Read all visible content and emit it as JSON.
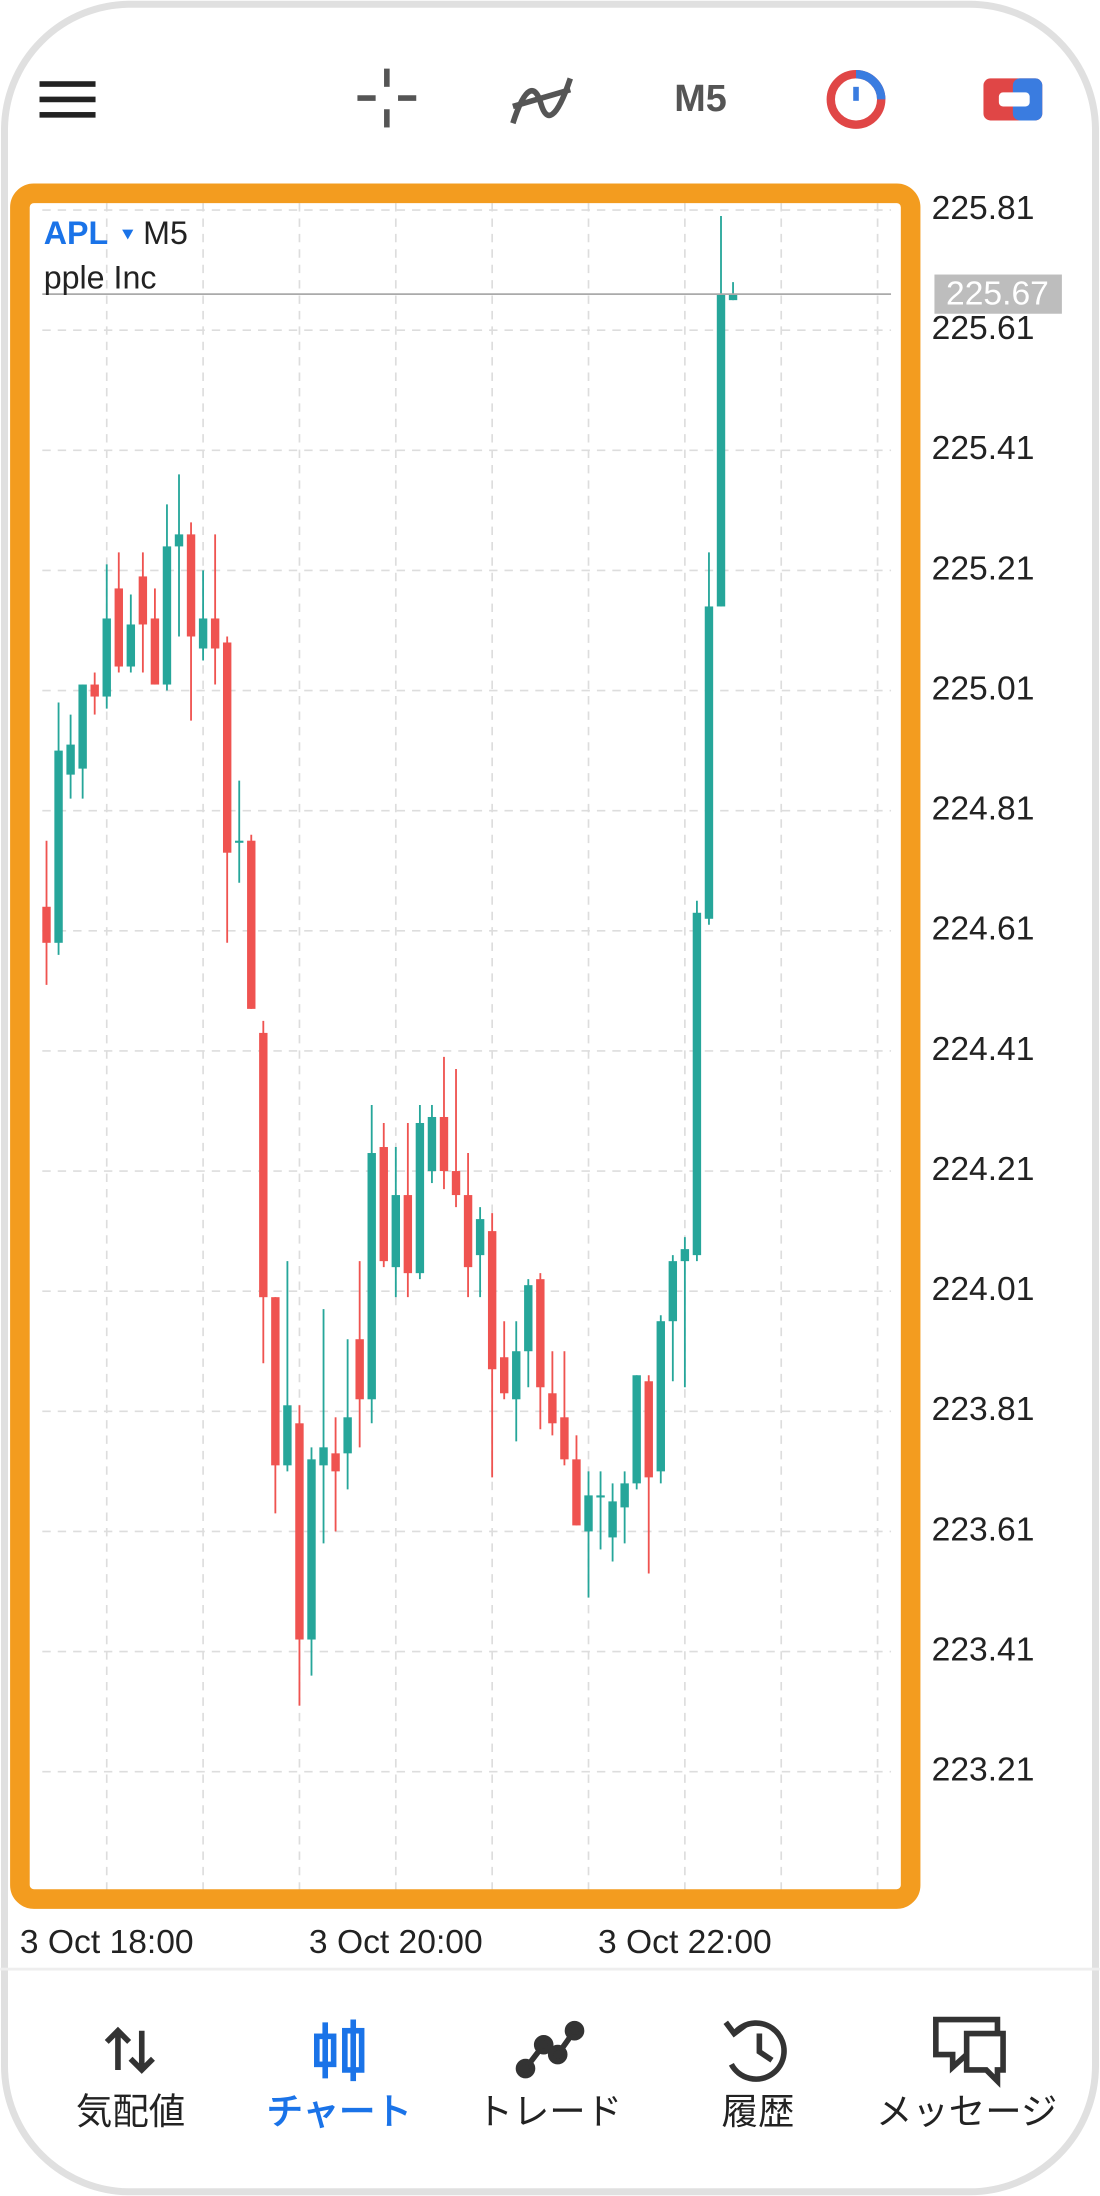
{
  "toolbar": {
    "timeframe": "M5"
  },
  "chart_data": {
    "type": "candlestick",
    "symbol": "APL",
    "timeframe": "M5",
    "description": "pple Inc",
    "categories": [
      null,
      null,
      null,
      null,
      null,
      "3 Oct 18:00",
      null,
      null,
      null,
      null,
      null,
      null,
      null,
      null,
      null,
      null,
      null,
      null,
      null,
      null,
      null,
      null,
      null,
      null,
      null,
      null,
      null,
      null,
      null,
      "3 Oct 20:00",
      null,
      null,
      null,
      null,
      null,
      null,
      null,
      null,
      null,
      null,
      null,
      null,
      null,
      null,
      null,
      null,
      null,
      null,
      null,
      null,
      null,
      null,
      null,
      "3 Oct 22:00",
      null,
      null,
      null,
      null
    ],
    "open": [
      224.65,
      224.59,
      224.87,
      224.88,
      225.02,
      225.0,
      225.18,
      225.05,
      225.2,
      225.13,
      225.02,
      225.25,
      225.27,
      225.08,
      225.13,
      225.09,
      224.76,
      224.76,
      224.44,
      224.0,
      223.72,
      223.79,
      223.43,
      223.72,
      223.74,
      223.74,
      223.93,
      223.83,
      224.25,
      224.05,
      224.17,
      224.04,
      224.21,
      224.3,
      224.21,
      224.17,
      224.07,
      224.11,
      223.9,
      223.83,
      223.91,
      224.03,
      223.84,
      223.8,
      223.73,
      223.61,
      223.67,
      223.6,
      223.65,
      223.69,
      223.86,
      223.71,
      223.96,
      224.06,
      224.07,
      224.63,
      225.15,
      225.66
    ],
    "high": [
      224.76,
      224.99,
      224.97,
      225.02,
      225.04,
      225.22,
      225.24,
      225.17,
      225.24,
      225.18,
      225.32,
      225.37,
      225.29,
      225.21,
      225.27,
      225.1,
      224.86,
      224.77,
      224.46,
      224.0,
      224.06,
      223.82,
      223.75,
      223.98,
      223.8,
      223.93,
      224.06,
      224.32,
      224.29,
      224.25,
      224.29,
      224.32,
      224.32,
      224.4,
      224.38,
      224.24,
      224.15,
      224.14,
      223.96,
      223.96,
      224.03,
      224.04,
      223.91,
      223.91,
      223.77,
      223.71,
      223.71,
      223.69,
      223.71,
      223.87,
      223.87,
      223.97,
      224.07,
      224.1,
      224.66,
      225.24,
      225.8,
      225.69
    ],
    "low": [
      224.52,
      224.57,
      224.83,
      224.83,
      224.97,
      224.98,
      225.04,
      225.04,
      225.04,
      225.02,
      225.01,
      225.1,
      224.96,
      225.06,
      225.02,
      224.59,
      224.69,
      224.48,
      223.89,
      223.64,
      223.71,
      223.32,
      223.37,
      223.59,
      223.61,
      223.68,
      223.75,
      223.79,
      224.05,
      224.0,
      224.0,
      224.03,
      224.19,
      224.18,
      224.15,
      224.0,
      224.0,
      223.7,
      223.83,
      223.76,
      223.85,
      223.78,
      223.77,
      223.72,
      223.62,
      223.5,
      223.58,
      223.56,
      223.59,
      223.68,
      223.54,
      223.69,
      223.86,
      223.85,
      224.06,
      224.62,
      225.15,
      225.66
    ],
    "close": [
      224.59,
      224.91,
      224.92,
      225.02,
      225.0,
      225.13,
      225.05,
      225.12,
      225.12,
      225.02,
      225.25,
      225.27,
      225.1,
      225.13,
      225.08,
      224.74,
      224.76,
      224.48,
      224.0,
      223.72,
      223.82,
      223.43,
      223.73,
      223.75,
      223.71,
      223.8,
      223.83,
      224.24,
      224.06,
      224.17,
      224.04,
      224.29,
      224.3,
      224.21,
      224.17,
      224.05,
      224.13,
      223.88,
      223.84,
      223.91,
      224.02,
      223.85,
      223.79,
      223.73,
      223.62,
      223.67,
      223.67,
      223.66,
      223.69,
      223.87,
      223.7,
      223.96,
      224.06,
      224.08,
      224.64,
      225.15,
      225.67,
      225.67
    ],
    "up_color": "#26a69a",
    "down_color": "#ef5350",
    "ylim": [
      223.02,
      225.83
    ],
    "yticks": [
      225.81,
      225.61,
      225.41,
      225.21,
      225.01,
      224.81,
      224.61,
      224.41,
      224.21,
      224.01,
      223.81,
      223.61,
      223.41,
      223.21
    ],
    "grid": true,
    "current_price": 225.67
  },
  "nav": {
    "items": [
      "気配値",
      "チャート",
      "トレード",
      "履歴",
      "メッセージ"
    ],
    "active": 1
  }
}
